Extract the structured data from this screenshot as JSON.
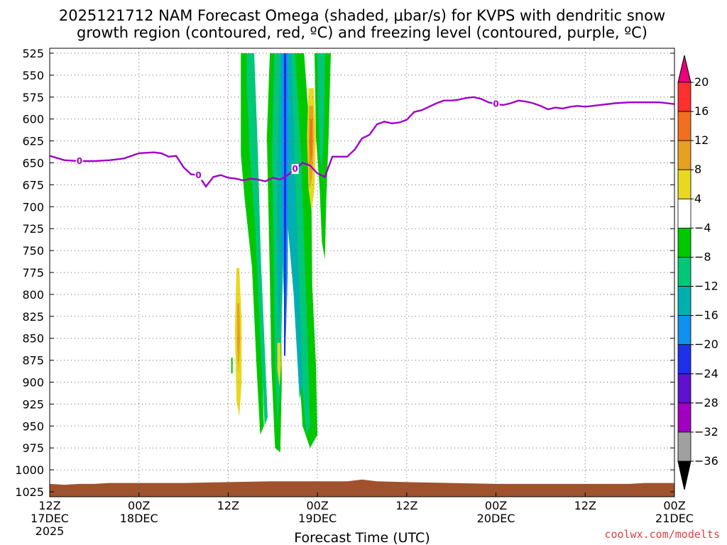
{
  "title": {
    "line1": "2025121712 NAM Forecast Omega (shaded, μbar/s) for KVPS with dendritic snow",
    "line2": "growth region (contoured, red, ºC) and freezing level (contoured, purple, ºC)"
  },
  "credit": "coolwx.com/modelts",
  "chart_data": {
    "type": "heatmap",
    "title": "2025121712 NAM Forecast Omega (shaded, μbar/s) for KVPS with dendritic snow growth region (contoured, red, ºC) and freezing level (contoured, purple, ºC)",
    "xlabel": "Forecast Time (UTC)",
    "ylabel": "",
    "x_range_hours": [
      0,
      84
    ],
    "y_range_hpa": [
      525,
      1025
    ],
    "y_scale": "inverted",
    "grid": true,
    "y_ticks": [
      525,
      550,
      575,
      600,
      625,
      650,
      675,
      700,
      725,
      750,
      775,
      800,
      825,
      850,
      875,
      900,
      925,
      950,
      975,
      1000,
      1025
    ],
    "x_ticks": [
      {
        "h": 0,
        "l1": "12Z",
        "l2": "17DEC",
        "l3": "2025"
      },
      {
        "h": 12,
        "l1": "00Z",
        "l2": "18DEC",
        "l3": ""
      },
      {
        "h": 24,
        "l1": "12Z",
        "l2": "",
        "l3": ""
      },
      {
        "h": 36,
        "l1": "00Z",
        "l2": "19DEC",
        "l3": ""
      },
      {
        "h": 48,
        "l1": "12Z",
        "l2": "",
        "l3": ""
      },
      {
        "h": 60,
        "l1": "00Z",
        "l2": "20DEC",
        "l3": ""
      },
      {
        "h": 72,
        "l1": "12Z",
        "l2": "",
        "l3": ""
      },
      {
        "h": 84,
        "l1": "00Z",
        "l2": "21DEC",
        "l3": ""
      }
    ],
    "colorbar": {
      "labels": [
        "20",
        "16",
        "12",
        "8",
        "4",
        "−4",
        "−8",
        "−12",
        "−16",
        "−20",
        "−24",
        "−28",
        "−32",
        "−36"
      ],
      "colors_top_to_bottom": [
        "#e8007a",
        "#ff3030",
        "#f07020",
        "#e8a020",
        "#e8d820",
        "#ffffff",
        "#00c800",
        "#00c878",
        "#00b0b0",
        "#1090f0",
        "#2030e8",
        "#6010d0",
        "#a000c0",
        "#a0a0a0",
        "#000000"
      ]
    },
    "freezing_level": {
      "color": "#a000c8",
      "label": "0",
      "points": [
        [
          0,
          642
        ],
        [
          2,
          647
        ],
        [
          4,
          648
        ],
        [
          6,
          648
        ],
        [
          8,
          647
        ],
        [
          10,
          645
        ],
        [
          12,
          639
        ],
        [
          14,
          638
        ],
        [
          15,
          639
        ],
        [
          16,
          643
        ],
        [
          17,
          642
        ],
        [
          18,
          655
        ],
        [
          19,
          663
        ],
        [
          20,
          664
        ],
        [
          21,
          677
        ],
        [
          22,
          666
        ],
        [
          23,
          664
        ],
        [
          24,
          667
        ],
        [
          25,
          668
        ],
        [
          26,
          670
        ],
        [
          27,
          668
        ],
        [
          28,
          669
        ],
        [
          29,
          671
        ],
        [
          30,
          667
        ],
        [
          31,
          669
        ],
        [
          32,
          664
        ],
        [
          33,
          657
        ],
        [
          34,
          650
        ],
        [
          35,
          653
        ],
        [
          36,
          662
        ],
        [
          37,
          666
        ],
        [
          38,
          643
        ],
        [
          39,
          643
        ],
        [
          40,
          643
        ],
        [
          41,
          635
        ],
        [
          42,
          622
        ],
        [
          43,
          618
        ],
        [
          44,
          606
        ],
        [
          45,
          603
        ],
        [
          46,
          605
        ],
        [
          47,
          604
        ],
        [
          48,
          601
        ],
        [
          49,
          592
        ],
        [
          50,
          590
        ],
        [
          51,
          586
        ],
        [
          52,
          582
        ],
        [
          53,
          579
        ],
        [
          54,
          579
        ],
        [
          55,
          578
        ],
        [
          56,
          576
        ],
        [
          57,
          575
        ],
        [
          58,
          577
        ],
        [
          59,
          581
        ],
        [
          60,
          583
        ],
        [
          61,
          584
        ],
        [
          62,
          582
        ],
        [
          63,
          579
        ],
        [
          64,
          580
        ],
        [
          65,
          582
        ],
        [
          66,
          585
        ],
        [
          67,
          589
        ],
        [
          68,
          587
        ],
        [
          69,
          588
        ],
        [
          70,
          586
        ],
        [
          71,
          585
        ],
        [
          72,
          586
        ],
        [
          74,
          584
        ],
        [
          76,
          582
        ],
        [
          78,
          581
        ],
        [
          80,
          581
        ],
        [
          82,
          581
        ],
        [
          84,
          583
        ]
      ]
    },
    "omega_regions": [
      {
        "value": -8,
        "color": "#00c800",
        "points": [
          [
            25.7,
            525
          ],
          [
            26.8,
            525
          ],
          [
            27.2,
            620
          ],
          [
            27.5,
            690
          ],
          [
            28.2,
            800
          ],
          [
            28.6,
            900
          ],
          [
            28.8,
            950
          ],
          [
            28.3,
            960
          ],
          [
            27.8,
            880
          ],
          [
            27.2,
            770
          ],
          [
            26.2,
            690
          ],
          [
            25.7,
            640
          ]
        ]
      },
      {
        "value": -12,
        "color": "#00c878",
        "points": [
          [
            26.5,
            525
          ],
          [
            27.5,
            525
          ],
          [
            28.0,
            640
          ],
          [
            28.4,
            760
          ],
          [
            28.9,
            860
          ],
          [
            29.3,
            940
          ],
          [
            28.9,
            950
          ],
          [
            28.3,
            850
          ],
          [
            27.6,
            720
          ],
          [
            26.9,
            640
          ],
          [
            26.5,
            560
          ]
        ]
      },
      {
        "value": -8,
        "color": "#00c800",
        "points": [
          [
            29.6,
            525
          ],
          [
            34.2,
            525
          ],
          [
            35.0,
            620
          ],
          [
            35.2,
            700
          ],
          [
            35.3,
            790
          ],
          [
            35.8,
            880
          ],
          [
            36.0,
            960
          ],
          [
            35.0,
            975
          ],
          [
            34.0,
            950
          ],
          [
            33.5,
            880
          ],
          [
            33.0,
            800
          ],
          [
            32.2,
            700
          ],
          [
            31.5,
            640
          ],
          [
            31.0,
            760
          ],
          [
            31.2,
            900
          ],
          [
            31.0,
            980
          ],
          [
            30.3,
            975
          ],
          [
            29.8,
            880
          ],
          [
            29.6,
            780
          ],
          [
            29.4,
            700
          ],
          [
            29.2,
            620
          ]
        ]
      },
      {
        "value": -12,
        "color": "#00c878",
        "points": [
          [
            30.2,
            525
          ],
          [
            33.0,
            525
          ],
          [
            33.8,
            640
          ],
          [
            34.3,
            760
          ],
          [
            34.7,
            860
          ],
          [
            35.0,
            950
          ],
          [
            34.5,
            960
          ],
          [
            33.7,
            880
          ],
          [
            33.0,
            800
          ],
          [
            32.0,
            710
          ],
          [
            31.4,
            760
          ],
          [
            31.0,
            900
          ],
          [
            30.6,
            950
          ],
          [
            30.3,
            880
          ],
          [
            30.1,
            760
          ],
          [
            29.9,
            640
          ]
        ]
      },
      {
        "value": -16,
        "color": "#00b0b0",
        "points": [
          [
            31.0,
            525
          ],
          [
            32.5,
            525
          ],
          [
            33.0,
            660
          ],
          [
            33.5,
            780
          ],
          [
            34.0,
            900
          ],
          [
            33.6,
            920
          ],
          [
            32.8,
            800
          ],
          [
            31.8,
            700
          ],
          [
            31.3,
            760
          ],
          [
            30.8,
            850
          ],
          [
            30.6,
            760
          ],
          [
            30.6,
            640
          ]
        ]
      },
      {
        "value": -20,
        "color": "#1090f0",
        "points": [
          [
            31.3,
            525
          ],
          [
            32.0,
            525
          ],
          [
            32.1,
            640
          ],
          [
            32.0,
            780
          ],
          [
            31.7,
            860
          ],
          [
            31.4,
            780
          ],
          [
            31.2,
            640
          ]
        ]
      },
      {
        "value": -24,
        "color": "#2030e8",
        "points": [
          [
            31.5,
            525
          ],
          [
            31.8,
            525
          ],
          [
            31.8,
            700
          ],
          [
            31.7,
            870
          ],
          [
            31.5,
            870
          ],
          [
            31.5,
            700
          ]
        ]
      },
      {
        "value": -8,
        "color": "#00c800",
        "points": [
          [
            35.6,
            525
          ],
          [
            37.8,
            525
          ],
          [
            37.5,
            620
          ],
          [
            37.2,
            690
          ],
          [
            37.0,
            760
          ],
          [
            36.6,
            740
          ],
          [
            36.3,
            680
          ],
          [
            35.8,
            620
          ]
        ]
      },
      {
        "value": -12,
        "color": "#00c878",
        "points": [
          [
            36.0,
            525
          ],
          [
            37.0,
            525
          ],
          [
            36.9,
            600
          ],
          [
            36.6,
            660
          ],
          [
            36.3,
            640
          ],
          [
            36.1,
            590
          ]
        ]
      },
      {
        "value": -8,
        "color": "#00c800",
        "points": [
          [
            24.4,
            872
          ],
          [
            24.6,
            872
          ],
          [
            24.6,
            890
          ],
          [
            24.4,
            890
          ]
        ]
      }
    ],
    "omega_positive": [
      {
        "value": 4,
        "color": "#e8d820",
        "points": [
          [
            34.8,
            565
          ],
          [
            35.5,
            565
          ],
          [
            35.8,
            620
          ],
          [
            35.6,
            680
          ],
          [
            35.2,
            705
          ],
          [
            34.8,
            680
          ],
          [
            34.6,
            620
          ]
        ]
      },
      {
        "value": 8,
        "color": "#e8a020",
        "points": [
          [
            34.9,
            585
          ],
          [
            35.4,
            585
          ],
          [
            35.5,
            625
          ],
          [
            35.3,
            665
          ],
          [
            35.0,
            680
          ],
          [
            34.8,
            650
          ],
          [
            34.8,
            610
          ]
        ]
      },
      {
        "value": 12,
        "color": "#f07020",
        "points": [
          [
            35.0,
            600
          ],
          [
            35.3,
            600
          ],
          [
            35.3,
            640
          ],
          [
            35.1,
            650
          ],
          [
            34.95,
            630
          ]
        ]
      },
      {
        "value": 4,
        "color": "#e8d820",
        "points": [
          [
            25.1,
            770
          ],
          [
            25.5,
            770
          ],
          [
            25.8,
            830
          ],
          [
            25.8,
            900
          ],
          [
            25.5,
            940
          ],
          [
            25.1,
            920
          ],
          [
            24.9,
            840
          ]
        ]
      },
      {
        "value": 8,
        "color": "#e8a020",
        "points": [
          [
            25.2,
            810
          ],
          [
            25.5,
            810
          ],
          [
            25.6,
            850
          ],
          [
            25.4,
            890
          ],
          [
            25.2,
            860
          ]
        ]
      },
      {
        "value": 4,
        "color": "#e8d820",
        "points": [
          [
            30.6,
            855
          ],
          [
            31.0,
            855
          ],
          [
            31.1,
            880
          ],
          [
            30.9,
            905
          ],
          [
            30.6,
            885
          ]
        ]
      }
    ],
    "terrain": {
      "color": "#a0522d",
      "base": 1025,
      "points": [
        [
          0,
          1016
        ],
        [
          2,
          1017
        ],
        [
          4,
          1016
        ],
        [
          6,
          1016
        ],
        [
          8,
          1015
        ],
        [
          12,
          1015
        ],
        [
          18,
          1015
        ],
        [
          24,
          1014
        ],
        [
          30,
          1013
        ],
        [
          36,
          1013
        ],
        [
          40,
          1013
        ],
        [
          42,
          1011
        ],
        [
          44,
          1013
        ],
        [
          48,
          1014
        ],
        [
          54,
          1015
        ],
        [
          60,
          1016
        ],
        [
          66,
          1016
        ],
        [
          72,
          1016
        ],
        [
          78,
          1016
        ],
        [
          80,
          1015
        ],
        [
          84,
          1015
        ]
      ]
    }
  }
}
